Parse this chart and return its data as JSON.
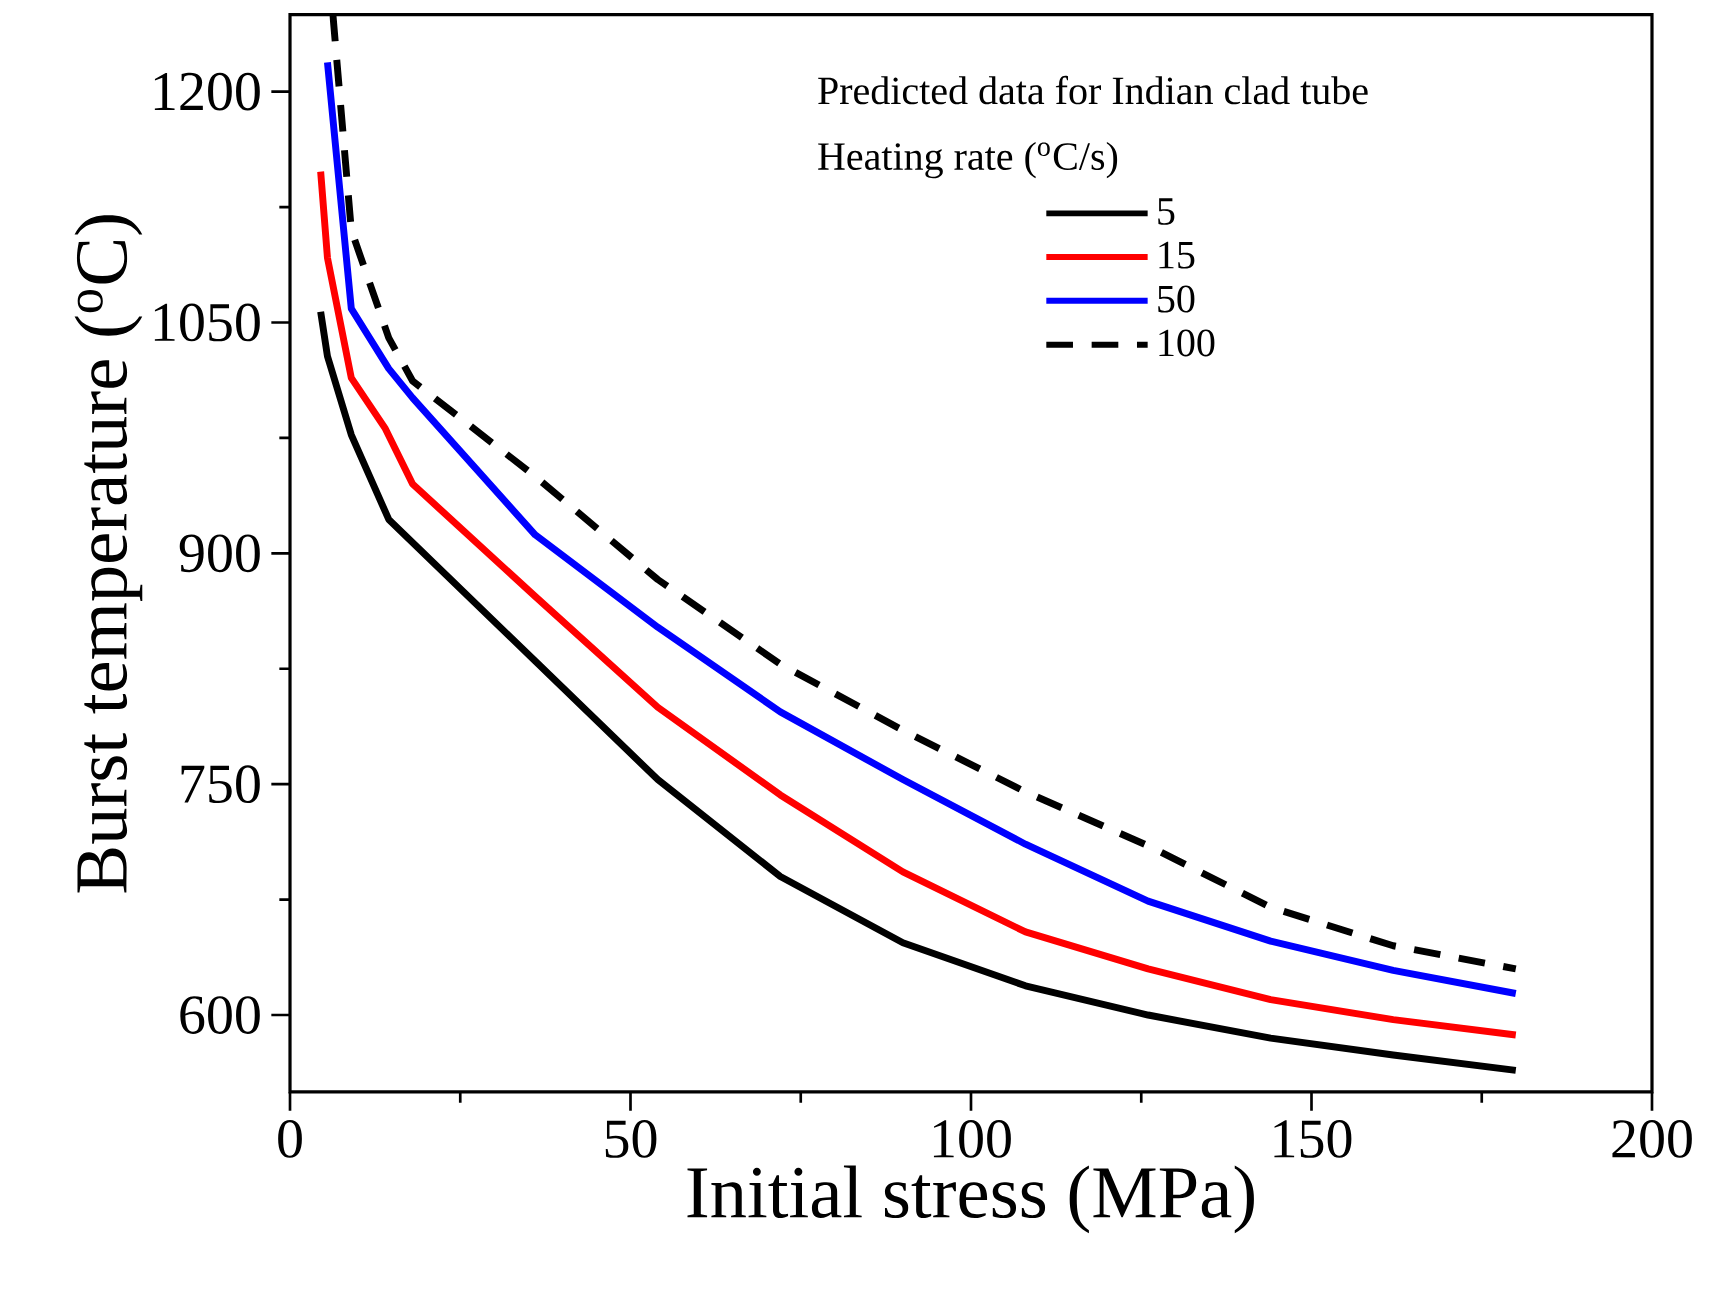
{
  "chart_data": {
    "type": "line",
    "xlabel": "Initial stress (MPa)",
    "ylabel": "Burst temperature ($^{o}$C)",
    "legend_title": "Heating rate ($^{o}$C/s)",
    "annotations": [
      "Predicted data for Indian clad tube"
    ],
    "xlim": [
      0,
      200
    ],
    "ylim": [
      550,
      1250
    ],
    "xticks": [
      0,
      50,
      100,
      150,
      200
    ],
    "yticks": [
      600,
      750,
      900,
      1050,
      1200
    ],
    "grid": false,
    "legend": "top right",
    "marker": "none",
    "series": [
      {
        "name": "5",
        "color": "#000000",
        "line_style": "solid",
        "x": [
          4.5,
          5.5,
          9,
          14.5,
          36,
          54,
          72,
          90,
          108,
          126,
          144,
          162,
          180
        ],
        "values": [
          1057,
          1028,
          977,
          922,
          830,
          753,
          690,
          647,
          619,
          600,
          585,
          574,
          564
        ]
      },
      {
        "name": "15",
        "color": "#ff0000",
        "line_style": "solid",
        "x": [
          4.5,
          5.5,
          9,
          14,
          18,
          36,
          54,
          72,
          90,
          108,
          126,
          144,
          162,
          180
        ],
        "values": [
          1148,
          1092,
          1014,
          981,
          945,
          872,
          800,
          743,
          693,
          654,
          630,
          610,
          597,
          587
        ]
      },
      {
        "name": "50",
        "color": "#0000ff",
        "line_style": "solid",
        "x": [
          5.5,
          9,
          14.5,
          18,
          36,
          54,
          72,
          90,
          108,
          126,
          144,
          162,
          180
        ],
        "values": [
          1219,
          1059,
          1020,
          1001,
          912,
          852,
          797,
          753,
          711,
          674,
          648,
          629,
          614
        ]
      },
      {
        "name": "100",
        "color": "#000000",
        "line_style": "dashed",
        "x": [
          6.3,
          9,
          14.5,
          18,
          36,
          54,
          72,
          90,
          108,
          126,
          144,
          162,
          180
        ],
        "values": [
          1250,
          1110,
          1040,
          1012,
          950,
          883,
          828,
          785,
          745,
          710,
          670,
          645,
          630
        ]
      }
    ]
  }
}
